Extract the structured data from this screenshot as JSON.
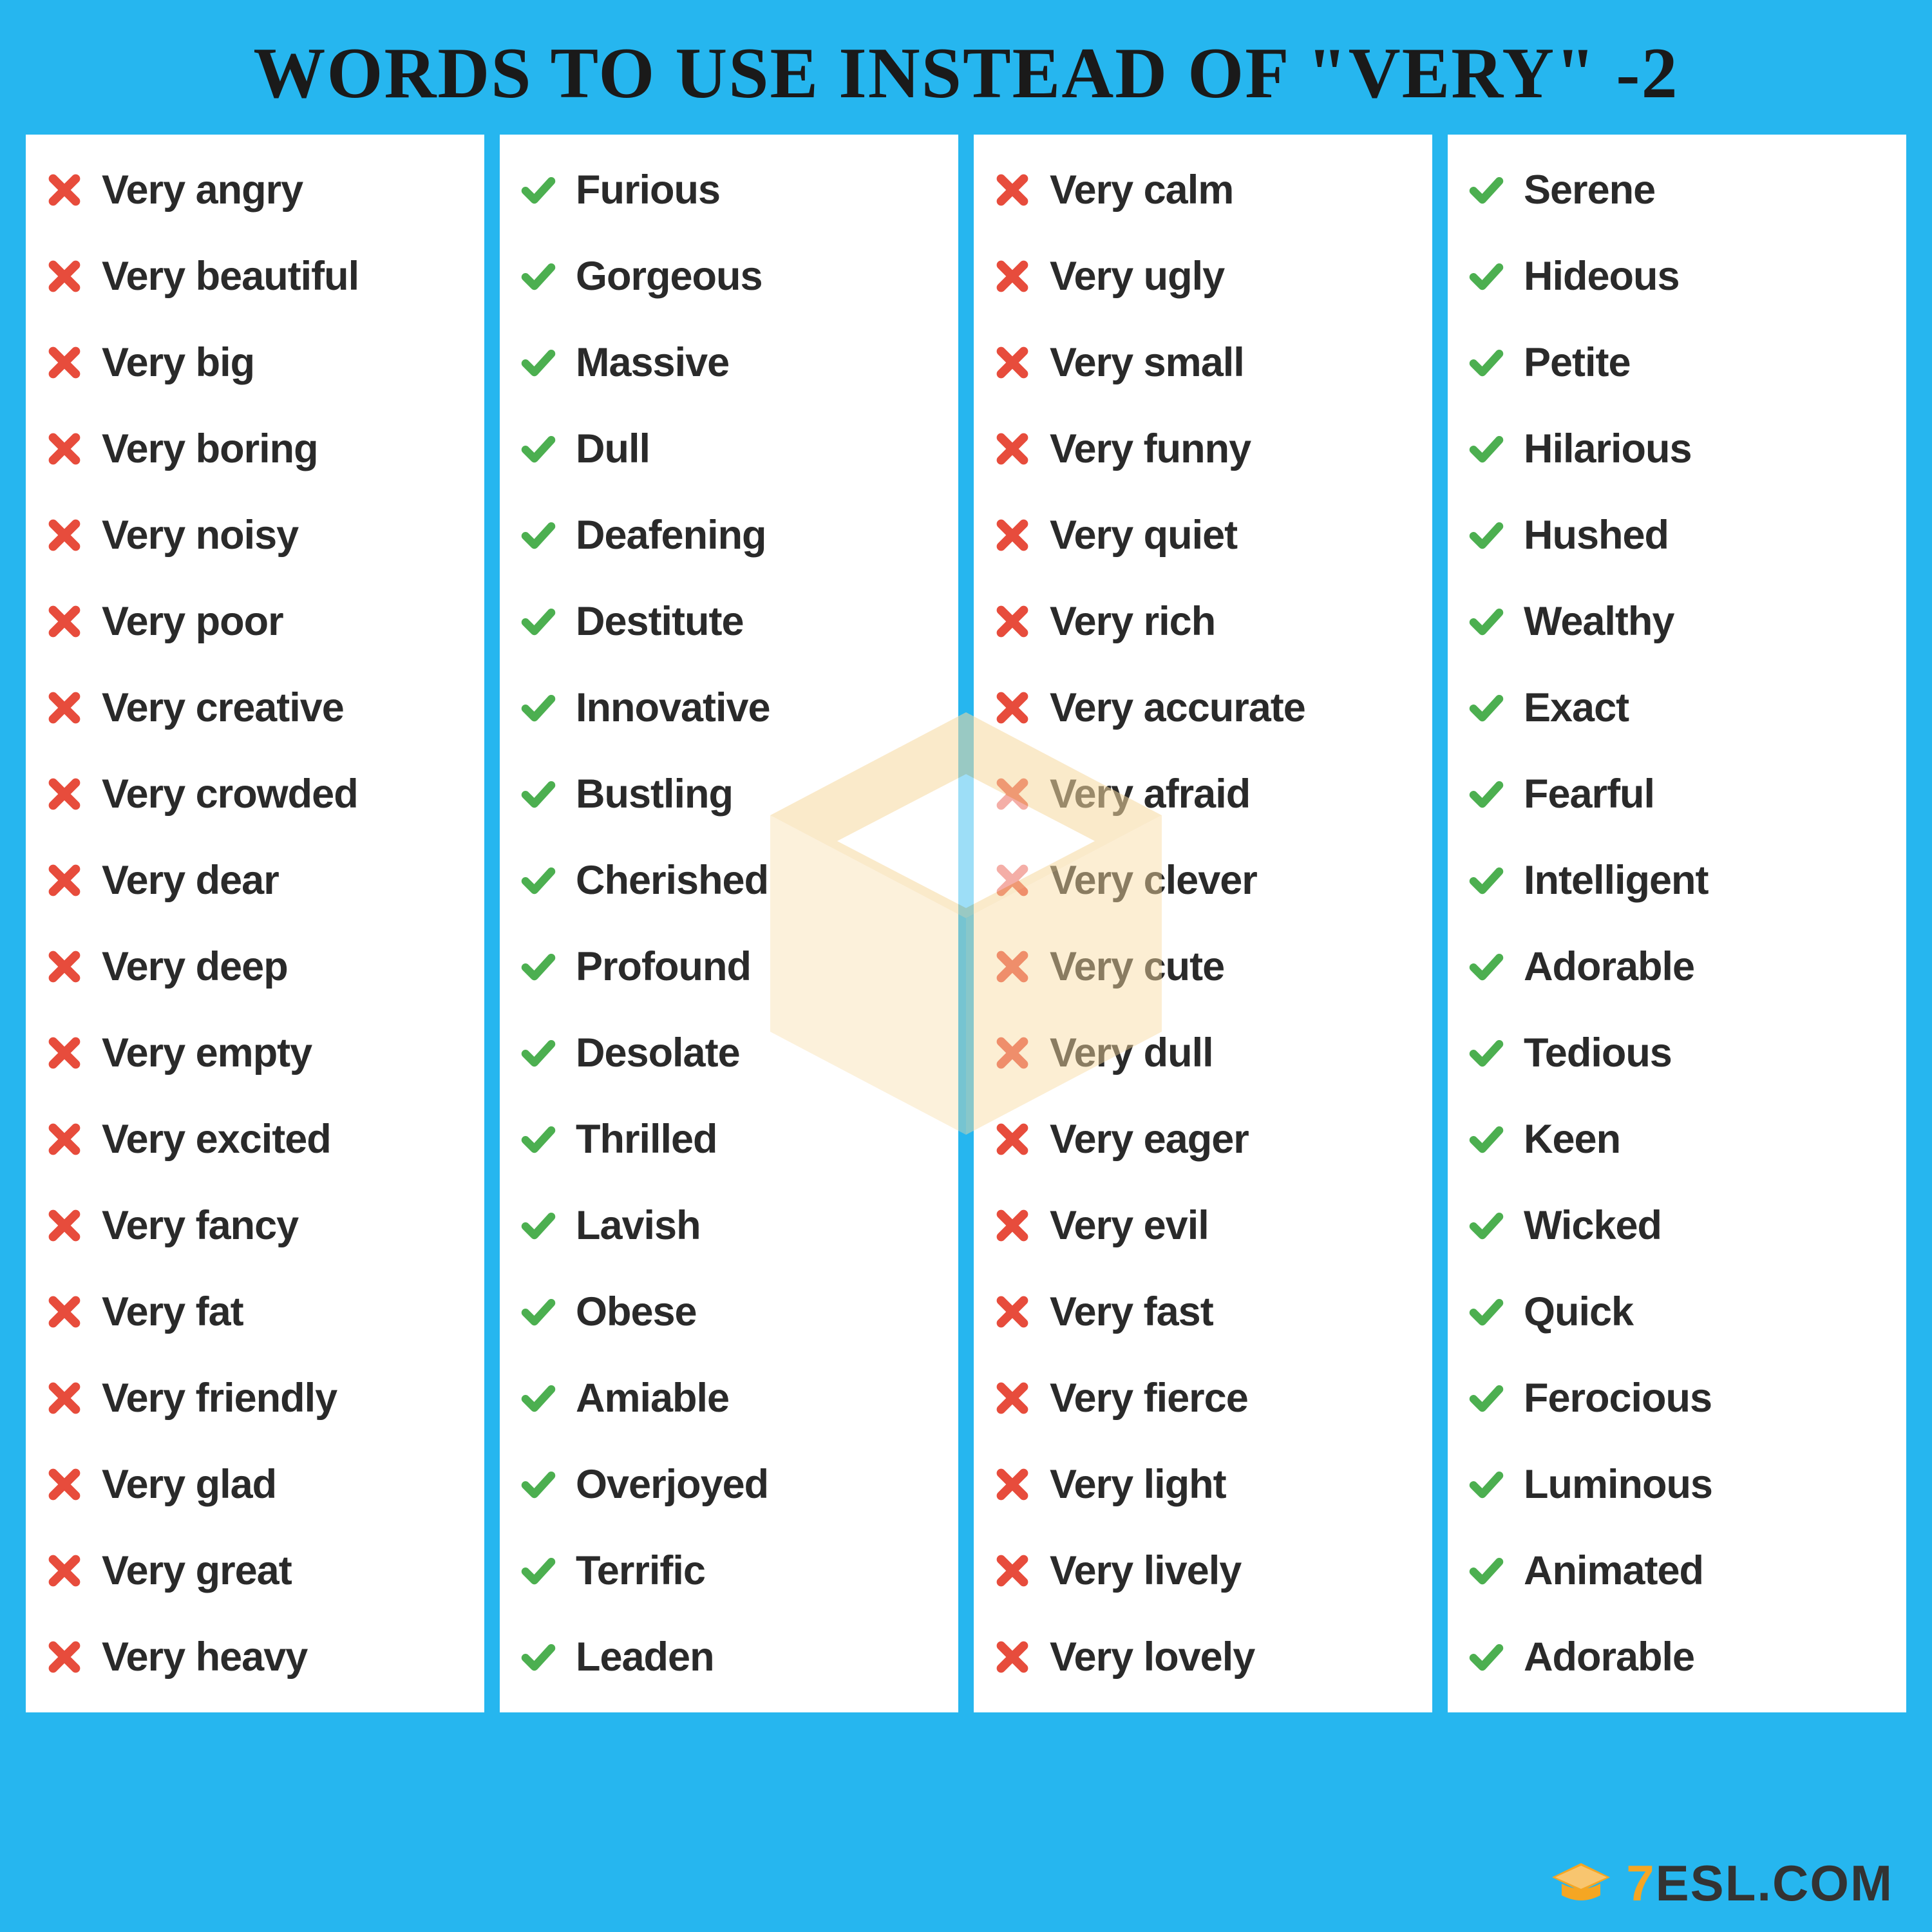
{
  "title": "WORDS TO USE INSTEAD OF \"VERY\" -2",
  "colors": {
    "background": "#26b6ef",
    "panel": "#ffffff",
    "text": "#2a2a2a",
    "cross": "#e74c3c",
    "check": "#4caf50",
    "watermark": "#f7d9a0",
    "brand_accent": "#f5a623"
  },
  "columns": [
    {
      "kind": "bad",
      "items": [
        "Very angry",
        "Very beautiful",
        "Very big",
        "Very boring",
        "Very noisy",
        "Very poor",
        "Very creative",
        "Very crowded",
        "Very dear",
        "Very deep",
        "Very empty",
        "Very excited",
        "Very fancy",
        "Very fat",
        "Very friendly",
        "Very glad",
        "Very great",
        "Very heavy"
      ]
    },
    {
      "kind": "good",
      "items": [
        "Furious",
        "Gorgeous",
        "Massive",
        "Dull",
        "Deafening",
        "Destitute",
        "Innovative",
        "Bustling",
        "Cherished",
        "Profound",
        "Desolate",
        "Thrilled",
        "Lavish",
        "Obese",
        "Amiable",
        "Overjoyed",
        "Terrific",
        "Leaden"
      ]
    },
    {
      "kind": "bad",
      "items": [
        "Very calm",
        "Very ugly",
        "Very small",
        "Very funny",
        "Very quiet",
        "Very rich",
        "Very accurate",
        "Very afraid",
        "Very clever",
        "Very cute",
        "Very dull",
        "Very eager",
        "Very evil",
        "Very fast",
        "Very fierce",
        "Very light",
        "Very lively",
        "Very lovely"
      ]
    },
    {
      "kind": "good",
      "items": [
        "Serene",
        "Hideous",
        "Petite",
        "Hilarious",
        "Hushed",
        "Wealthy",
        "Exact",
        "Fearful",
        "Intelligent",
        "Adorable",
        "Tedious",
        "Keen",
        "Wicked",
        "Quick",
        "Ferocious",
        "Luminous",
        "Animated",
        "Adorable"
      ]
    }
  ],
  "footer": {
    "brand": "ESL.COM",
    "seven": "7"
  }
}
